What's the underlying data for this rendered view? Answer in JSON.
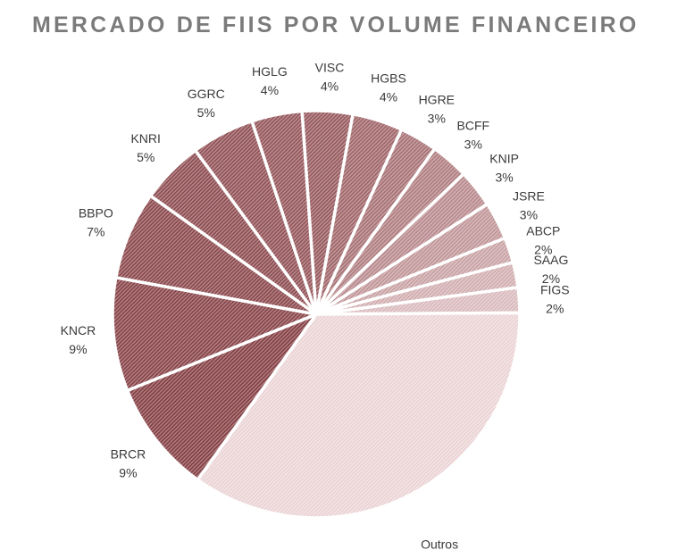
{
  "chart_data": {
    "type": "pie",
    "title": "MERCADO DE FIIS POR VOLUME FINANCEIRO",
    "unit": "%",
    "slices": [
      {
        "label": "VISC",
        "value": 4
      },
      {
        "label": "HGBS",
        "value": 4
      },
      {
        "label": "HGRE",
        "value": 3
      },
      {
        "label": "BCFF",
        "value": 3
      },
      {
        "label": "KNIP",
        "value": 3
      },
      {
        "label": "JSRE",
        "value": 3
      },
      {
        "label": "ABCP",
        "value": 2
      },
      {
        "label": "SAAG",
        "value": 2
      },
      {
        "label": "FIGS",
        "value": 2
      },
      {
        "label": "Outros",
        "value": 35
      },
      {
        "label": "BRCR",
        "value": 9
      },
      {
        "label": "KNCR",
        "value": 9
      },
      {
        "label": "BBPO",
        "value": 7
      },
      {
        "label": "KNRI",
        "value": 5
      },
      {
        "label": "GGRC",
        "value": 5
      },
      {
        "label": "HGLG",
        "value": 4
      }
    ],
    "start_angle_deg": -4,
    "direction": "clockwise",
    "colors": {
      "dark": "#b07478",
      "light": "#f3e4e5",
      "stripe_dark": "#6e2f33",
      "stripe_light": "#e9cfd1",
      "separator": "#ffffff"
    },
    "legend": "none"
  }
}
